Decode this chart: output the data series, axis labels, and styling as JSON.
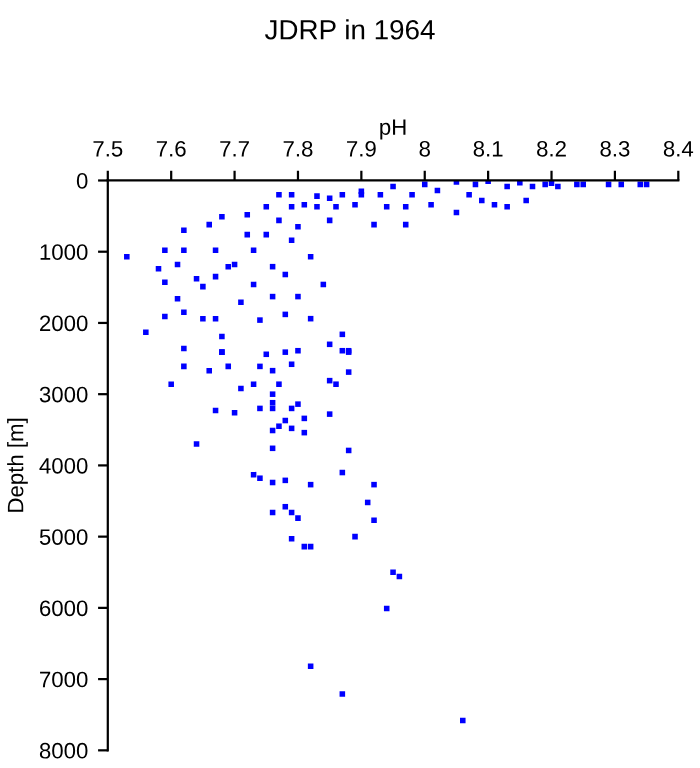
{
  "chart_data": {
    "type": "scatter",
    "title": "JDRP in 1964",
    "xlabel": "pH",
    "ylabel": "Depth [m]",
    "xlim": [
      7.5,
      8.4
    ],
    "xticks": [
      7.5,
      7.6,
      7.7,
      7.8,
      7.9,
      8,
      8.1,
      8.2,
      8.3,
      8.4
    ],
    "ylim": [
      8000,
      0
    ],
    "yticks": [
      0,
      1000,
      2000,
      3000,
      4000,
      5000,
      6000,
      7000,
      8000
    ],
    "marker": "square",
    "grid": false,
    "series": [
      {
        "color": "#0000ff",
        "x": [
          8.06,
          7.82,
          7.87,
          7.94,
          7.96,
          7.95,
          7.89,
          7.92,
          7.91,
          7.92,
          7.87,
          7.82,
          7.81,
          7.79,
          7.8,
          7.79,
          7.78,
          7.76,
          7.82,
          7.78,
          7.76,
          7.74,
          7.73,
          7.88,
          7.76,
          7.64,
          7.81,
          7.79,
          7.76,
          7.77,
          7.78,
          7.81,
          7.85,
          7.7,
          7.67,
          7.74,
          7.76,
          7.79,
          7.8,
          7.76,
          7.76,
          7.6,
          7.71,
          7.73,
          7.77,
          7.86,
          7.85,
          7.88,
          7.79,
          7.76,
          7.74,
          7.69,
          7.66,
          7.62,
          7.62,
          7.68,
          7.75,
          7.78,
          7.8,
          7.87,
          7.85,
          7.88,
          7.53,
          7.56,
          7.59,
          7.59,
          7.62,
          7.62,
          7.58,
          7.59,
          7.61,
          7.61,
          7.62,
          7.65,
          7.64,
          7.65,
          7.67,
          7.68,
          7.68,
          7.66,
          7.67,
          7.67,
          7.68,
          7.69,
          7.7,
          7.71,
          7.72,
          7.72,
          7.73,
          7.73,
          7.74,
          7.75,
          7.75,
          7.76,
          7.76,
          7.77,
          7.77,
          7.78,
          7.78,
          7.79,
          7.79,
          7.79,
          7.8,
          7.8,
          7.81,
          7.82,
          7.82,
          7.83,
          7.83,
          7.84,
          7.85,
          7.86,
          7.87,
          7.87,
          7.88,
          7.89,
          7.9,
          7.92,
          7.93,
          7.94,
          7.95,
          7.97,
          7.97,
          7.98,
          8.0,
          8.01,
          8.02,
          8.05,
          8.07,
          8.08,
          8.09,
          8.11,
          8.13,
          8.13,
          8.16,
          8.17,
          8.19,
          8.21,
          8.24,
          8.25,
          8.29,
          8.31,
          8.34,
          8.35,
          8.05,
          8.1,
          8.15,
          8.2,
          7.9,
          7.85
        ],
        "values": [
          7580,
          6820,
          7210,
          6010,
          5560,
          5500,
          5000,
          4770,
          4520,
          4270,
          4100,
          5140,
          5140,
          5030,
          4740,
          4660,
          4580,
          4660,
          4270,
          4210,
          4240,
          4180,
          4130,
          3790,
          3760,
          3700,
          3540,
          3480,
          3510,
          3450,
          3370,
          3340,
          3280,
          3260,
          3230,
          3200,
          3200,
          3200,
          3140,
          3120,
          3000,
          2860,
          2920,
          2860,
          2860,
          2860,
          2810,
          2690,
          2580,
          2670,
          2610,
          2610,
          2670,
          2610,
          2360,
          2410,
          2440,
          2410,
          2390,
          2390,
          2300,
          2410,
          1070,
          2130,
          1910,
          980,
          980,
          700,
          1240,
          1430,
          1180,
          1660,
          1850,
          1940,
          1380,
          1490,
          1940,
          2190,
          2410,
          620,
          980,
          1350,
          510,
          1210,
          1180,
          1710,
          480,
          760,
          980,
          1460,
          1960,
          370,
          760,
          1210,
          1630,
          200,
          560,
          1320,
          1880,
          370,
          200,
          840,
          1630,
          650,
          340,
          1070,
          1940,
          220,
          370,
          1460,
          560,
          370,
          200,
          2160,
          2390,
          340,
          200,
          620,
          200,
          370,
          85,
          620,
          370,
          200,
          55,
          340,
          140,
          450,
          200,
          55,
          280,
          340,
          370,
          85,
          280,
          85,
          55,
          85,
          55,
          55,
          55,
          55,
          55,
          55,
          20,
          10,
          30,
          40,
          150,
          250
        ]
      }
    ]
  }
}
